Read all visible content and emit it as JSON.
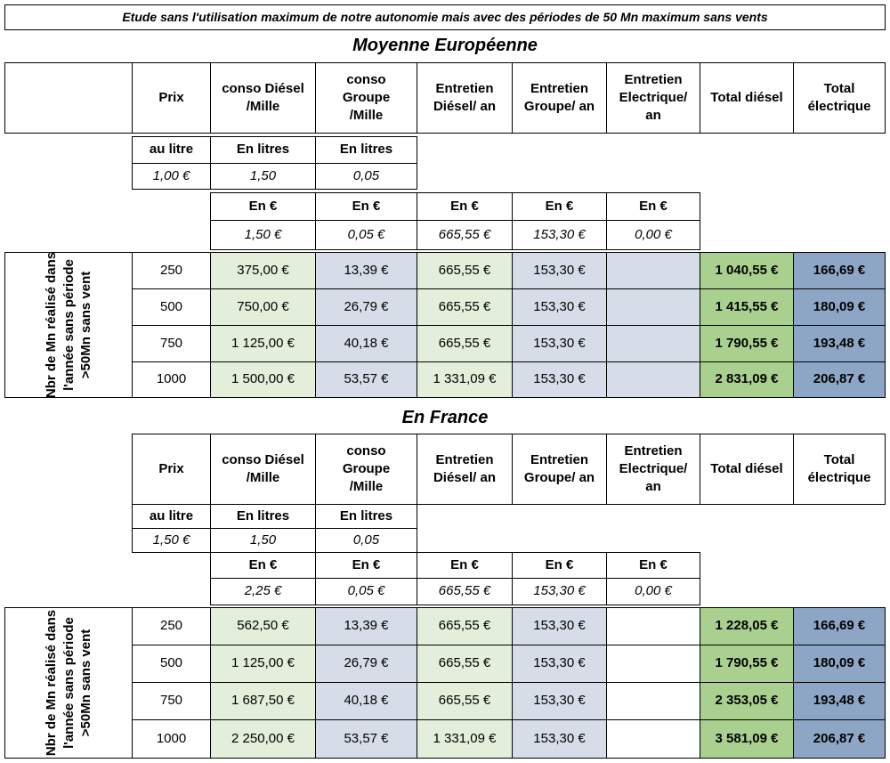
{
  "title": "Etude sans l'utilisation maximum de notre autonomie mais avec des périodes de 50 Mn maximum sans vents",
  "headers": {
    "prix": "Prix",
    "conso_diesel": "conso Diésel /Mille",
    "conso_groupe": "conso Groupe /Mille",
    "entretien_diesel": "Entretien Diésel/ an",
    "entretien_groupe": "Entretien Groupe/ an",
    "entretien_elec": "Entretien Electrique/ an",
    "total_diesel": "Total diésel",
    "total_elec": "Total électrique"
  },
  "units": {
    "litre": "au litre",
    "litres": "En litres",
    "euro": "En €"
  },
  "row_label": "Nbr de Mn réalisé dans l'année sans période >50Mn sans vent",
  "sections": [
    {
      "name": "Moyenne Européenne",
      "prix_litre": "1,00 €",
      "conso_diesel_l": "1,50",
      "conso_groupe_l": "0,05",
      "conso_diesel_eur": "1,50 €",
      "conso_groupe_eur": "0,05 €",
      "entretien_diesel_eur": "665,55 €",
      "entretien_groupe_eur": "153,30 €",
      "entretien_elec_eur": "0,00 €",
      "rows": [
        {
          "mn": "250",
          "diesel": "375,00 €",
          "groupe": "13,39 €",
          "ent_d": "665,55 €",
          "ent_g": "153,30 €",
          "total_d": "1 040,55 €",
          "total_e": "166,69 €"
        },
        {
          "mn": "500",
          "diesel": "750,00 €",
          "groupe": "26,79 €",
          "ent_d": "665,55 €",
          "ent_g": "153,30 €",
          "total_d": "1 415,55 €",
          "total_e": "180,09 €"
        },
        {
          "mn": "750",
          "diesel": "1 125,00 €",
          "groupe": "40,18 €",
          "ent_d": "665,55 €",
          "ent_g": "153,30 €",
          "total_d": "1 790,55 €",
          "total_e": "193,48 €"
        },
        {
          "mn": "1000",
          "diesel": "1 500,00 €",
          "groupe": "53,57 €",
          "ent_d": "1 331,09 €",
          "ent_g": "153,30 €",
          "total_d": "2 831,09 €",
          "total_e": "206,87 €"
        }
      ]
    },
    {
      "name": "En France",
      "prix_litre": "1,50 €",
      "conso_diesel_l": "1,50",
      "conso_groupe_l": "0,05",
      "conso_diesel_eur": "2,25 €",
      "conso_groupe_eur": "0,05 €",
      "entretien_diesel_eur": "665,55 €",
      "entretien_groupe_eur": "153,30 €",
      "entretien_elec_eur": "0,00 €",
      "rows": [
        {
          "mn": "250",
          "diesel": "562,50 €",
          "groupe": "13,39 €",
          "ent_d": "665,55 €",
          "ent_g": "153,30 €",
          "total_d": "1 228,05 €",
          "total_e": "166,69 €"
        },
        {
          "mn": "500",
          "diesel": "1 125,00 €",
          "groupe": "26,79 €",
          "ent_d": "665,55 €",
          "ent_g": "153,30 €",
          "total_d": "1 790,55 €",
          "total_e": "180,09 €"
        },
        {
          "mn": "750",
          "diesel": "1 687,50 €",
          "groupe": "40,18 €",
          "ent_d": "665,55 €",
          "ent_g": "153,30 €",
          "total_d": "2 353,05 €",
          "total_e": "193,48 €"
        },
        {
          "mn": "1000",
          "diesel": "2 250,00 €",
          "groupe": "53,57 €",
          "ent_d": "1 331,09 €",
          "ent_g": "153,30 €",
          "total_d": "3 581,09 €",
          "total_e": "206,87 €"
        }
      ]
    }
  ]
}
